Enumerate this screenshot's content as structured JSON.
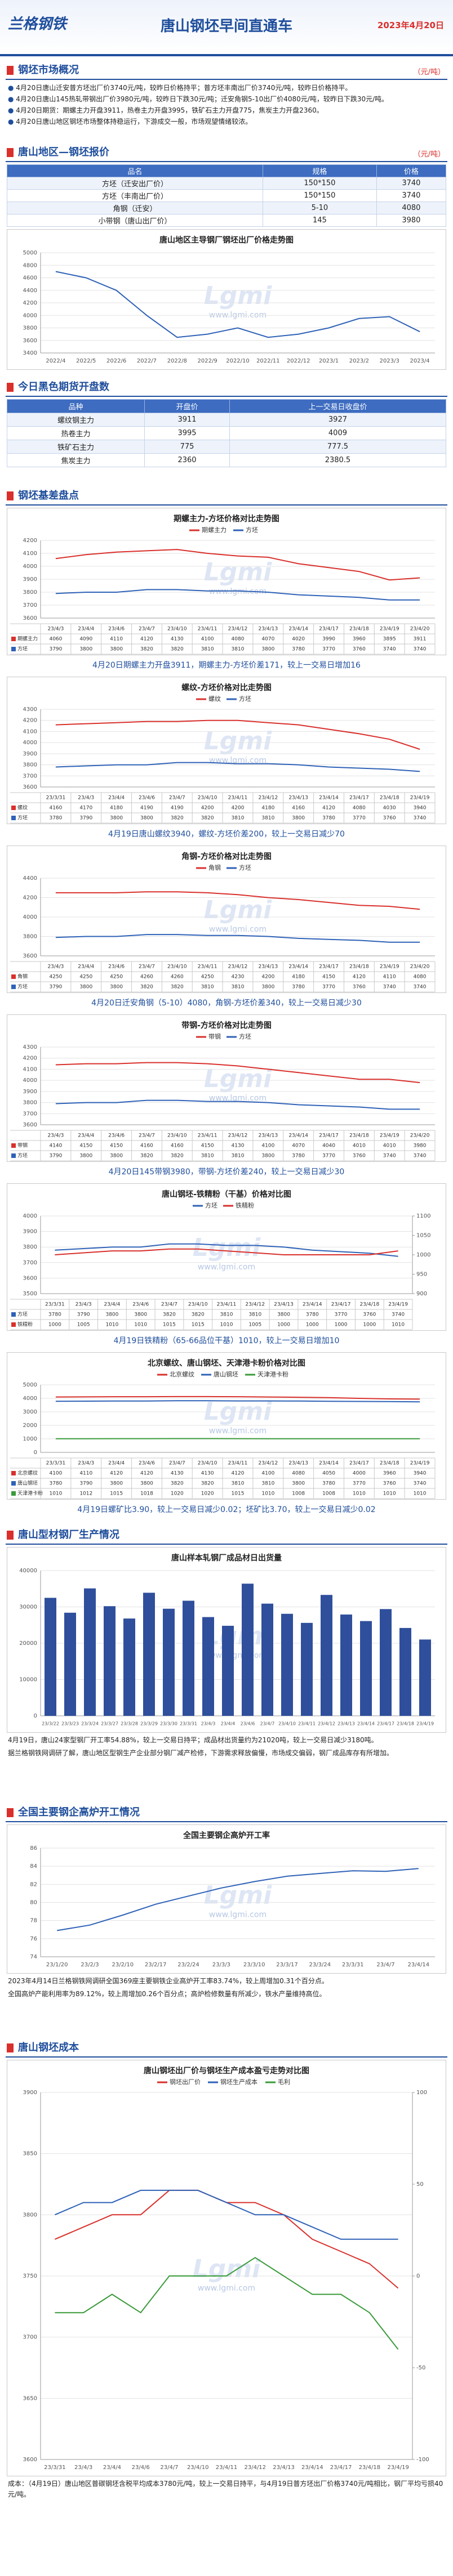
{
  "header": {
    "logo": "兰格钢铁",
    "title": "唐山钢坯早间直通车",
    "date": "2023年4月20日"
  },
  "watermark": {
    "logo": "Lgmi",
    "url": "www.lgmi.com"
  },
  "overview": {
    "heading": "钢坯市场概况",
    "unit": "（元/吨）",
    "items": [
      "4月20日唐山迁安普方坯出厂价3740元/吨，较昨日价格持平；普方坯丰南出厂价3740元/吨，较昨日价格持平。",
      "4月20日唐山145热轧带钢出厂价3980元/吨，较昨日下跌30元/吨；迁安角钢5-10出厂价4080元/吨，较昨日下跌30元/吨。",
      "4月20日期货：期螺主力开盘3911，热卷主力开盘3995，铁矿石主力开盘775，焦炭主力开盘2360。",
      "4月20日唐山地区钢坯市场整体持稳运行，下游成交一般，市场观望情绪较浓。"
    ]
  },
  "quote": {
    "heading": "唐山地区—钢坯报价",
    "unit": "（元/吨）",
    "columns": [
      "品名",
      "规格",
      "价格"
    ],
    "rows": [
      [
        "方坯（迁安出厂价）",
        "150*150",
        3740
      ],
      [
        "方坯（丰南出厂价）",
        "150*150",
        3740
      ],
      [
        "角钢（迁安）",
        "5-10",
        4080
      ],
      [
        "小带钢（唐山出厂价）",
        "145",
        3980
      ]
    ]
  },
  "futures": {
    "heading": "今日黑色期货开盘数",
    "columns": [
      "品种",
      "开盘价",
      "上一交易日收盘价"
    ],
    "rows": [
      [
        "螺纹钢主力",
        3911,
        3927
      ],
      [
        "热卷主力",
        3995,
        4009
      ],
      [
        "铁矿石主力",
        775,
        777.5
      ],
      [
        "焦炭主力",
        2360,
        2380.5
      ]
    ]
  },
  "basis": {
    "heading": "钢坯基差盘点",
    "captions": [
      "4月20日期螺主力开盘3911，期螺主力-方坯价差171，较上一交易日增加16",
      "4月19日唐山螺纹3940，螺纹-方坯价差200，较上一交易日减少70",
      "4月20日迁安角钢（5-10）4080，角钢-方坯价差340，较上一交易日减少30",
      "4月20日145带钢3980，带钢-方坯价差240，较上一交易日减少30",
      "4月19日铁精粉（65-66品位干基）1010，较上一交易日增加10",
      "4月19日螺矿比3.90，较上一交易日减少0.02；坯矿比3.70，较上一交易日减少0.02"
    ]
  },
  "production": {
    "heading": "唐山型材钢厂生产情况",
    "paragraphs": [
      "4月19日，唐山24家型钢厂开工率54.88%，较上一交易日持平；成品材出货量约为21020吨，较上一交易日减少3180吨。",
      "据兰格钢铁网调研了解，唐山地区型钢生产企业部分钢厂减产检修，下游需求释放偏慢，市场成交偏弱，钢厂成品库存有所增加。"
    ]
  },
  "blast": {
    "heading": "全国主要钢企高炉开工情况",
    "paragraphs": [
      "2023年4月14日兰格钢铁网调研全国369座主要钢铁企业高炉开工率83.74%，较上周增加0.31个百分点。",
      "全国高炉产能利用率为89.12%，较上周增加0.26个百分点；高炉检修数量有所减少，铁水产量维持高位。"
    ]
  },
  "cost": {
    "heading": "唐山钢坯成本",
    "paragraphs": [
      "成本：（4月19日）唐山地区普碳钢坯含税平均成本3780元/吨，较上一交易日持平，与4月19日普方坯出厂价格3740元/吨相比，钢厂平均亏损40元/吨。"
    ]
  },
  "chart_data": [
    {
      "type": "line",
      "title": "唐山地区主导钢厂钢坯出厂价格走势图",
      "categories": [
        "2022/4",
        "2022/5",
        "2022/6",
        "2022/7",
        "2022/8",
        "2022/9",
        "2022/10",
        "2022/11",
        "2022/12",
        "2023/1",
        "2023/2",
        "2023/3",
        "2023/4"
      ],
      "values": [
        4700,
        4600,
        4400,
        4000,
        3650,
        3700,
        3800,
        3650,
        3700,
        3800,
        3950,
        3980,
        3740
      ],
      "color": "#2f62b7",
      "ylim": [
        3400,
        5000
      ],
      "yticks": [
        3400,
        3600,
        3800,
        4000,
        4200,
        4400,
        4600,
        4800,
        5000
      ],
      "grid": true
    },
    {
      "type": "line",
      "title": "期螺主力-方坯价格对比走势图",
      "data_table": true,
      "grid": true,
      "categories": [
        "23/4/3",
        "23/4/4",
        "23/4/6",
        "23/4/7",
        "23/4/10",
        "23/4/11",
        "23/4/12",
        "23/4/13",
        "23/4/14",
        "23/4/17",
        "23/4/18",
        "23/4/19",
        "23/4/20"
      ],
      "series": [
        {
          "name": "期螺主力",
          "color": "#d9302c",
          "values": [
            4060,
            4090,
            4110,
            4120,
            4130,
            4100,
            4080,
            4070,
            4020,
            3990,
            3960,
            3895,
            3911
          ]
        },
        {
          "name": "方坯",
          "color": "#2f62b7",
          "values": [
            3790,
            3800,
            3800,
            3820,
            3820,
            3810,
            3810,
            3800,
            3780,
            3770,
            3760,
            3740,
            3740
          ]
        }
      ],
      "ylim": [
        3600,
        4200
      ],
      "yticks": [
        3600,
        3700,
        3800,
        3900,
        4000,
        4100,
        4200
      ]
    },
    {
      "type": "line",
      "title": "螺纹-方坯价格对比走势图",
      "data_table": true,
      "grid": true,
      "categories": [
        "23/3/31",
        "23/4/3",
        "23/4/4",
        "23/4/6",
        "23/4/7",
        "23/4/10",
        "23/4/11",
        "23/4/12",
        "23/4/13",
        "23/4/14",
        "23/4/17",
        "23/4/18",
        "23/4/19"
      ],
      "series": [
        {
          "name": "螺纹",
          "color": "#d9302c",
          "values": [
            4160,
            4170,
            4180,
            4190,
            4190,
            4200,
            4200,
            4180,
            4160,
            4120,
            4080,
            4030,
            3940
          ]
        },
        {
          "name": "方坯",
          "color": "#2f62b7",
          "values": [
            3780,
            3790,
            3800,
            3800,
            3820,
            3820,
            3810,
            3810,
            3800,
            3780,
            3770,
            3760,
            3740
          ]
        }
      ],
      "ylim": [
        3600,
        4300
      ],
      "yticks": [
        3600,
        3700,
        3800,
        3900,
        4000,
        4100,
        4200,
        4300
      ]
    },
    {
      "type": "line",
      "title": "角钢-方坯价格对比走势图",
      "data_table": true,
      "grid": true,
      "categories": [
        "23/4/3",
        "23/4/4",
        "23/4/6",
        "23/4/7",
        "23/4/10",
        "23/4/11",
        "23/4/12",
        "23/4/13",
        "23/4/14",
        "23/4/17",
        "23/4/18",
        "23/4/19",
        "23/4/20"
      ],
      "series": [
        {
          "name": "角钢",
          "color": "#d9302c",
          "values": [
            4250,
            4250,
            4250,
            4260,
            4260,
            4250,
            4230,
            4200,
            4180,
            4150,
            4120,
            4110,
            4080
          ]
        },
        {
          "name": "方坯",
          "color": "#2f62b7",
          "values": [
            3790,
            3800,
            3800,
            3820,
            3820,
            3810,
            3810,
            3800,
            3780,
            3770,
            3760,
            3740,
            3740
          ]
        }
      ],
      "ylim": [
        3600,
        4400
      ],
      "yticks": [
        3600,
        3800,
        4000,
        4200,
        4400
      ]
    },
    {
      "type": "line",
      "title": "带钢-方坯价格对比走势图",
      "data_table": true,
      "grid": true,
      "categories": [
        "23/4/3",
        "23/4/4",
        "23/4/6",
        "23/4/7",
        "23/4/10",
        "23/4/11",
        "23/4/12",
        "23/4/13",
        "23/4/14",
        "23/4/17",
        "23/4/18",
        "23/4/19",
        "23/4/20"
      ],
      "series": [
        {
          "name": "带钢",
          "color": "#d9302c",
          "values": [
            4140,
            4150,
            4150,
            4160,
            4160,
            4150,
            4130,
            4100,
            4070,
            4040,
            4010,
            4010,
            3980
          ]
        },
        {
          "name": "方坯",
          "color": "#2f62b7",
          "values": [
            3790,
            3800,
            3800,
            3820,
            3820,
            3810,
            3810,
            3800,
            3780,
            3770,
            3760,
            3740,
            3740
          ]
        }
      ],
      "ylim": [
        3600,
        4300
      ],
      "yticks": [
        3600,
        3700,
        3800,
        3900,
        4000,
        4100,
        4200,
        4300
      ]
    },
    {
      "type": "line",
      "title": "唐山钢坯-铁精粉（干基）价格对比图",
      "data_table": true,
      "grid": true,
      "categories": [
        "23/3/31",
        "23/4/3",
        "23/4/4",
        "23/4/6",
        "23/4/7",
        "23/4/10",
        "23/4/11",
        "23/4/12",
        "23/4/13",
        "23/4/14",
        "23/4/17",
        "23/4/18",
        "23/4/19"
      ],
      "series": [
        {
          "name": "方坯",
          "color": "#2f62b7",
          "values": [
            3780,
            3790,
            3800,
            3800,
            3820,
            3820,
            3810,
            3810,
            3800,
            3780,
            3770,
            3760,
            3740
          ]
        },
        {
          "name": "铁精粉",
          "color": "#d9302c",
          "axis": "y2",
          "values": [
            1000,
            1005,
            1010,
            1010,
            1015,
            1015,
            1010,
            1005,
            1000,
            1000,
            1000,
            1000,
            1010
          ]
        }
      ],
      "ylim": [
        3500,
        4000
      ],
      "yticks": [
        3500,
        3600,
        3700,
        3800,
        3900,
        4000
      ],
      "y2lim": [
        900,
        1100
      ],
      "y2ticks": [
        900,
        950,
        1000,
        1050,
        1100
      ]
    },
    {
      "type": "line",
      "title": "北京螺纹、唐山钢坯、天津港卡粉价格对比图",
      "data_table": true,
      "grid": true,
      "categories": [
        "23/3/31",
        "23/4/3",
        "23/4/4",
        "23/4/6",
        "23/4/7",
        "23/4/10",
        "23/4/11",
        "23/4/12",
        "23/4/13",
        "23/4/14",
        "23/4/17",
        "23/4/18",
        "23/4/19"
      ],
      "series": [
        {
          "name": "北京螺纹",
          "color": "#d9302c",
          "values": [
            4100,
            4110,
            4120,
            4120,
            4130,
            4130,
            4120,
            4100,
            4080,
            4050,
            4000,
            3960,
            3940
          ]
        },
        {
          "name": "唐山钢坯",
          "color": "#2f62b7",
          "values": [
            3780,
            3790,
            3800,
            3800,
            3820,
            3820,
            3810,
            3810,
            3800,
            3780,
            3770,
            3760,
            3740
          ]
        },
        {
          "name": "天津港卡粉",
          "color": "#3a9b3a",
          "values": [
            1010,
            1012,
            1015,
            1018,
            1020,
            1020,
            1015,
            1010,
            1008,
            1008,
            1010,
            1010,
            1010
          ]
        }
      ],
      "ylim": [
        0,
        5000
      ],
      "yticks": [
        0,
        1000,
        2000,
        3000,
        4000,
        5000
      ]
    },
    {
      "type": "bar",
      "title": "唐山样本轧钢厂成品材日出货量",
      "grid": true,
      "color": "#2f4f9c",
      "categories": [
        "23/3/22",
        "23/3/23",
        "23/3/24",
        "23/3/27",
        "23/3/28",
        "23/3/29",
        "23/3/30",
        "23/3/31",
        "23/4/3",
        "23/4/4",
        "23/4/6",
        "23/4/7",
        "23/4/10",
        "23/4/11",
        "23/4/12",
        "23/4/13",
        "23/4/14",
        "23/4/17",
        "23/4/18",
        "23/4/19"
      ],
      "values": [
        32500,
        28400,
        35100,
        30200,
        26800,
        33900,
        29500,
        31700,
        27200,
        24800,
        36400,
        30900,
        28100,
        25600,
        33300,
        27900,
        26100,
        29400,
        24200,
        21020
      ],
      "ylim": [
        0,
        40000
      ],
      "yticks": [
        0,
        10000,
        20000,
        30000,
        40000
      ]
    },
    {
      "type": "line",
      "title": "全国主要钢企高炉开工率",
      "grid": true,
      "color": "#2f62b7",
      "categories": [
        "23/1/20",
        "23/2/3",
        "23/2/10",
        "23/2/17",
        "23/2/24",
        "23/3/3",
        "23/3/10",
        "23/3/17",
        "23/3/24",
        "23/3/31",
        "23/4/7",
        "23/4/14"
      ],
      "values": [
        76.9,
        77.5,
        78.6,
        79.8,
        80.7,
        81.6,
        82.3,
        82.9,
        83.2,
        83.5,
        83.43,
        83.74
      ],
      "ylim": [
        74,
        86
      ],
      "yticks": [
        74,
        76,
        78,
        80,
        82,
        84,
        86
      ]
    },
    {
      "type": "line",
      "title": "唐山钢坯出厂价与钢坯生产成本盈亏走势对比图",
      "grid": true,
      "categories": [
        "23/3/31",
        "23/4/3",
        "23/4/4",
        "23/4/6",
        "23/4/7",
        "23/4/10",
        "23/4/11",
        "23/4/12",
        "23/4/13",
        "23/4/14",
        "23/4/17",
        "23/4/18",
        "23/4/19"
      ],
      "series": [
        {
          "name": "钢坯出厂价",
          "color": "#d9302c",
          "values": [
            3780,
            3790,
            3800,
            3800,
            3820,
            3820,
            3810,
            3810,
            3800,
            3780,
            3770,
            3760,
            3740
          ]
        },
        {
          "name": "钢坯生产成本",
          "color": "#2f62b7",
          "values": [
            3800,
            3810,
            3810,
            3820,
            3820,
            3820,
            3810,
            3800,
            3800,
            3790,
            3780,
            3780,
            3780
          ]
        },
        {
          "name": "毛利",
          "color": "#3a9b3a",
          "axis": "y2",
          "values": [
            -20,
            -20,
            -10,
            -20,
            0,
            0,
            0,
            10,
            0,
            -10,
            -10,
            -20,
            -40
          ]
        }
      ],
      "ylim": [
        3600,
        3900
      ],
      "yticks": [
        3600,
        3650,
        3700,
        3750,
        3800,
        3850,
        3900
      ],
      "y2lim": [
        -100,
        100
      ],
      "y2ticks": [
        -100,
        -50,
        0,
        50,
        100
      ]
    }
  ]
}
